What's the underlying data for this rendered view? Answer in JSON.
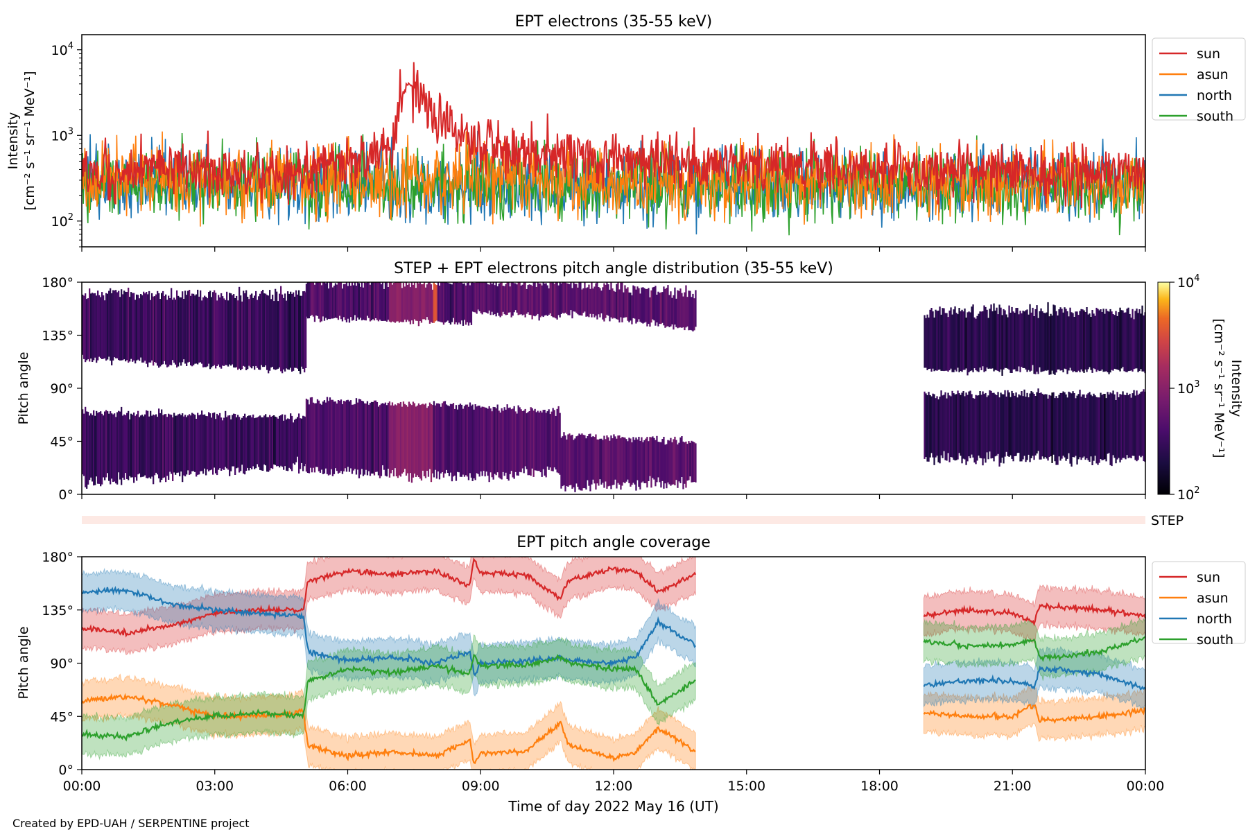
{
  "figure": {
    "time_axis_label": "Time of day 2022 May 16 (UT)",
    "credit": "Created by EPD-UAH / SERPENTINE project",
    "time_ticks": [
      "00:00",
      "03:00",
      "06:00",
      "09:00",
      "12:00",
      "15:00",
      "18:00",
      "21:00",
      "00:00"
    ],
    "time_range_hours": [
      0,
      24
    ]
  },
  "chart_data": [
    {
      "type": "line",
      "title": "EPT electrons (35-55 keV)",
      "ylabel": "Intensity",
      "yunit": "[cm⁻² s⁻¹ sr⁻¹ MeV⁻¹]",
      "yscale": "log",
      "ylim": [
        50,
        15000
      ],
      "yticks": [
        {
          "label": "10",
          "exp": "2",
          "value": 100
        },
        {
          "label": "10",
          "exp": "3",
          "value": 1000
        },
        {
          "label": "10",
          "exp": "4",
          "value": 10000
        }
      ],
      "legend_placement": "outside-right-top",
      "series": [
        {
          "name": "sun",
          "color": "#d62728",
          "baseline": 400,
          "peak": {
            "x": 7.35,
            "y": 4000
          },
          "x": [
            0,
            1,
            2,
            3,
            4,
            5,
            6,
            7,
            7.35,
            8,
            9,
            10,
            12,
            15,
            18,
            21,
            24
          ],
          "y": [
            350,
            380,
            420,
            400,
            380,
            400,
            500,
            700,
            4000,
            1300,
            800,
            650,
            520,
            450,
            420,
            380,
            350
          ]
        },
        {
          "name": "asun",
          "color": "#ff7f0e",
          "baseline": 280,
          "x": [
            0,
            3,
            6,
            9,
            12,
            15,
            18,
            21,
            24
          ],
          "y": [
            300,
            300,
            300,
            320,
            300,
            280,
            280,
            280,
            300
          ]
        },
        {
          "name": "north",
          "color": "#1f77b4",
          "baseline": 260,
          "x": [
            0,
            3,
            6,
            9,
            12,
            15,
            18,
            21,
            24
          ],
          "y": [
            280,
            270,
            260,
            270,
            260,
            260,
            260,
            260,
            270
          ]
        },
        {
          "name": "south",
          "color": "#2ca02c",
          "baseline": 260,
          "x": [
            0,
            3,
            6,
            9,
            12,
            15,
            18,
            21,
            24
          ],
          "y": [
            280,
            270,
            260,
            270,
            260,
            260,
            260,
            260,
            270
          ]
        }
      ]
    },
    {
      "type": "heatmap",
      "title": "STEP + EPT electrons pitch angle distribution (35-55 keV)",
      "ylabel": "Pitch angle",
      "ylim": [
        0,
        180
      ],
      "yticks": [
        "0°",
        "45°",
        "90°",
        "135°",
        "180°"
      ],
      "colorbar": {
        "label": "Intensity",
        "unit": "[cm⁻² s⁻¹ sr⁻¹ MeV⁻¹]",
        "scale": "log",
        "range": [
          100,
          10000
        ],
        "ticks": [
          {
            "label": "10",
            "exp": "2"
          },
          {
            "label": "10",
            "exp": "3"
          },
          {
            "label": "10",
            "exp": "4"
          }
        ],
        "colormap": "inferno"
      },
      "bands": [
        {
          "t0": 0,
          "t1": 5.05,
          "y_top": [
            170,
            170
          ],
          "y_mid_hi": [
            115,
            105
          ],
          "y_mid_lo": [
            70,
            65
          ],
          "y_bot": [
            10,
            25
          ],
          "level": 0.25
        },
        {
          "t0": 5.05,
          "t1": 8.8,
          "y_top": [
            180,
            180
          ],
          "y_mid_hi": [
            150,
            145
          ],
          "y_mid_lo": [
            80,
            75
          ],
          "y_bot": [
            20,
            15
          ],
          "level": 0.3
        },
        {
          "t0": 8.8,
          "t1": 10.8,
          "y_top": [
            180,
            180
          ],
          "y_mid_hi": [
            155,
            150
          ],
          "y_mid_lo": [
            75,
            70
          ],
          "y_bot": [
            15,
            20
          ],
          "level": 0.35
        },
        {
          "t0": 10.8,
          "t1": 13.85,
          "y_top": [
            180,
            170
          ],
          "y_mid_hi": [
            155,
            140
          ],
          "y_mid_lo": [
            50,
            45
          ],
          "y_bot": [
            5,
            10
          ],
          "level": 0.35
        },
        {
          "t0": 19.0,
          "t1": 24,
          "y_top": [
            155,
            155
          ],
          "y_mid_hi": [
            105,
            105
          ],
          "y_mid_lo": [
            85,
            85
          ],
          "y_bot": [
            30,
            30
          ],
          "level": 0.2
        }
      ],
      "hotspots": [
        {
          "t0": 7.2,
          "t1": 8.0,
          "y0": 145,
          "y1": 180,
          "level": 0.8
        },
        {
          "t0": 6.9,
          "t1": 7.9,
          "y0": 70,
          "y1": 110,
          "level": 0.5
        }
      ]
    },
    {
      "type": "bar",
      "label": "STEP",
      "color": "#fde9e4"
    },
    {
      "type": "line",
      "title": "EPT pitch angle coverage",
      "ylabel": "Pitch angle",
      "ylim": [
        0,
        180
      ],
      "yticks": [
        "0°",
        "45°",
        "90°",
        "135°",
        "180°"
      ],
      "legend_placement": "outside-right-top",
      "gap": [
        13.85,
        19.0
      ],
      "series": [
        {
          "name": "sun",
          "color": "#d62728",
          "x": [
            0,
            1,
            2,
            3,
            4,
            5,
            5.1,
            6,
            7,
            8,
            8.75,
            8.85,
            9,
            10,
            10.8,
            11,
            12,
            12.5,
            13,
            13.85,
            19,
            20,
            21,
            21.5,
            21.6,
            22,
            23,
            24
          ],
          "y": [
            120,
            115,
            122,
            132,
            135,
            135,
            160,
            168,
            165,
            168,
            155,
            178,
            166,
            165,
            145,
            160,
            170,
            168,
            150,
            165,
            130,
            135,
            132,
            125,
            138,
            138,
            135,
            130
          ]
        },
        {
          "name": "asun",
          "color": "#ff7f0e",
          "x": [
            0,
            1,
            2,
            3,
            4,
            5,
            5.1,
            6,
            7,
            8,
            8.75,
            8.85,
            9,
            10,
            10.8,
            11,
            12,
            12.5,
            13,
            13.85,
            19,
            20,
            21,
            21.5,
            21.6,
            22,
            23,
            24
          ],
          "y": [
            58,
            62,
            55,
            45,
            45,
            48,
            20,
            12,
            15,
            12,
            25,
            5,
            14,
            15,
            40,
            20,
            10,
            15,
            35,
            15,
            48,
            45,
            45,
            55,
            42,
            42,
            45,
            50
          ]
        },
        {
          "name": "north",
          "color": "#1f77b4",
          "x": [
            0,
            1,
            2,
            3,
            4,
            5,
            5.1,
            6,
            7,
            8,
            8.75,
            8.85,
            9,
            10,
            10.8,
            11,
            12,
            12.5,
            13,
            13.85,
            19,
            20,
            21,
            21.5,
            21.6,
            22,
            23,
            24
          ],
          "y": [
            150,
            152,
            140,
            135,
            132,
            130,
            100,
            92,
            95,
            90,
            100,
            80,
            90,
            92,
            95,
            92,
            90,
            95,
            125,
            105,
            72,
            75,
            75,
            70,
            85,
            85,
            80,
            68
          ]
        },
        {
          "name": "south",
          "color": "#2ca02c",
          "x": [
            0,
            1,
            2,
            3,
            4,
            5,
            5.1,
            6,
            7,
            8,
            8.75,
            8.85,
            9,
            10,
            10.8,
            11,
            12,
            12.5,
            13,
            13.85,
            19,
            20,
            21,
            21.5,
            21.6,
            22,
            23,
            24
          ],
          "y": [
            30,
            28,
            40,
            45,
            48,
            45,
            75,
            85,
            82,
            88,
            80,
            98,
            88,
            88,
            95,
            90,
            85,
            85,
            55,
            75,
            108,
            105,
            105,
            110,
            95,
            95,
            100,
            112
          ]
        }
      ]
    }
  ]
}
